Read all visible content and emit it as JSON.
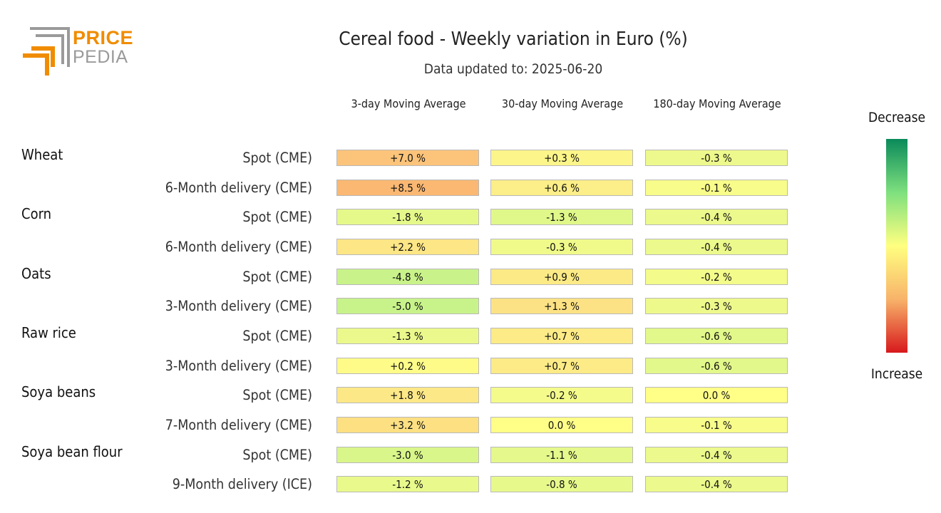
{
  "logo": {
    "line1": "PRICE",
    "line2": "PEDIA",
    "orange": "#f08c00",
    "gray": "#9a9a9a"
  },
  "title": "Cereal food - Weekly variation in Euro (%)",
  "subtitle": "Data updated to: 2025-06-20",
  "legend": {
    "top_label": "Decrease",
    "bottom_label": "Increase",
    "colors": [
      "#0a8a5a",
      "#7ee07e",
      "#ffff80",
      "#f8b36a",
      "#d7191c"
    ]
  },
  "chart_data": {
    "type": "table",
    "title": "Cereal food - Weekly variation in Euro (%)",
    "columns": [
      "3-day Moving Average",
      "30-day Moving Average",
      "180-day Moving Average"
    ],
    "groups": [
      {
        "name": "Wheat",
        "rows": [
          {
            "label": "Spot (CME)",
            "values": [
              "+7.0 %",
              "+0.3 %",
              "-0.3 %"
            ],
            "colors": [
              "#fcc47a",
              "#fcf58a",
              "#edf98c"
            ]
          },
          {
            "label": "6-Month delivery (CME)",
            "values": [
              "+8.5 %",
              "+0.6 %",
              "-0.1 %"
            ],
            "colors": [
              "#fbb872",
              "#fcee88",
              "#f8fc8a"
            ]
          }
        ]
      },
      {
        "name": "Corn",
        "rows": [
          {
            "label": "Spot (CME)",
            "values": [
              "-1.8 %",
              "-1.3 %",
              "-0.4 %"
            ],
            "colors": [
              "#e5f98b",
              "#e0f88a",
              "#ecf98c"
            ]
          },
          {
            "label": "6-Month delivery (CME)",
            "values": [
              "+2.2 %",
              "-0.3 %",
              "-0.4 %"
            ],
            "colors": [
              "#fde685",
              "#f0fa8b",
              "#ecf98c"
            ]
          }
        ]
      },
      {
        "name": "Oats",
        "rows": [
          {
            "label": "Spot (CME)",
            "values": [
              "-4.8 %",
              "+0.9 %",
              "-0.2 %"
            ],
            "colors": [
              "#c9f38a",
              "#fcea86",
              "#f3fb8b"
            ]
          },
          {
            "label": "3-Month delivery (CME)",
            "values": [
              "-5.0 %",
              "+1.3 %",
              "-0.3 %"
            ],
            "colors": [
              "#c8f38a",
              "#fde285",
              "#eef98c"
            ]
          }
        ]
      },
      {
        "name": "Raw rice",
        "rows": [
          {
            "label": "Spot (CME)",
            "values": [
              "-1.3 %",
              "+0.7 %",
              "-0.6 %"
            ],
            "colors": [
              "#ebf98c",
              "#fceb87",
              "#e3f88b"
            ]
          },
          {
            "label": "3-Month delivery (CME)",
            "values": [
              "+0.2 %",
              "+0.7 %",
              "-0.6 %"
            ],
            "colors": [
              "#fefb89",
              "#fceb87",
              "#e3f88b"
            ]
          }
        ]
      },
      {
        "name": "Soya beans",
        "rows": [
          {
            "label": "Spot (CME)",
            "values": [
              "+1.8 %",
              "-0.2 %",
              "0.0 %"
            ],
            "colors": [
              "#fde887",
              "#f4fb8b",
              "#ffff88"
            ]
          },
          {
            "label": "7-Month delivery (CME)",
            "values": [
              "+3.2 %",
              "0.0 %",
              "-0.1 %"
            ],
            "colors": [
              "#fce082",
              "#ffff88",
              "#f8fc8a"
            ]
          }
        ]
      },
      {
        "name": "Soya bean flour",
        "rows": [
          {
            "label": "Spot (CME)",
            "values": [
              "-3.0 %",
              "-1.1 %",
              "-0.4 %"
            ],
            "colors": [
              "#d8f68a",
              "#e4f88b",
              "#ecf98c"
            ]
          },
          {
            "label": "9-Month delivery (ICE)",
            "values": [
              "-1.2 %",
              "-0.8 %",
              "-0.4 %"
            ],
            "colors": [
              "#eaf98c",
              "#e8f98c",
              "#ecf98c"
            ]
          }
        ]
      }
    ]
  }
}
